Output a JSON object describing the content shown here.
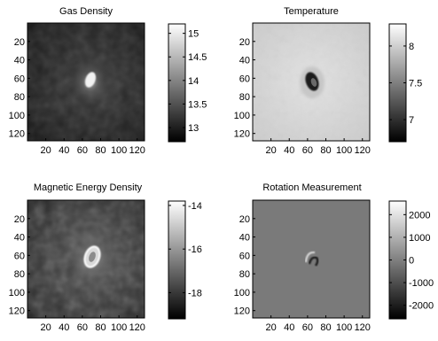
{
  "chart_data": [
    {
      "type": "heatmap",
      "title": "Gas Density",
      "x_ticks": [
        20,
        40,
        60,
        80,
        100,
        120
      ],
      "y_ticks": [
        20,
        40,
        60,
        80,
        100,
        120
      ],
      "xlim": [
        0,
        128
      ],
      "ylim": [
        0,
        128
      ],
      "colormap": "gray",
      "colorbar": {
        "range": [
          12.7,
          15.2
        ],
        "ticks": [
          13,
          13.5,
          14,
          14.5,
          15
        ],
        "tick_labels": [
          "13",
          "13.5",
          "14",
          "14.5",
          "15"
        ]
      },
      "features": [
        {
          "kind": "bright-blob",
          "x": 66,
          "y": 62,
          "value": 15.0
        }
      ]
    },
    {
      "type": "heatmap",
      "title": "Temperature",
      "x_ticks": [
        20,
        40,
        60,
        80,
        100,
        120
      ],
      "y_ticks": [
        20,
        40,
        60,
        80,
        100,
        120
      ],
      "xlim": [
        0,
        128
      ],
      "ylim": [
        0,
        128
      ],
      "colormap": "gray",
      "colorbar": {
        "range": [
          6.7,
          8.3
        ],
        "ticks": [
          7,
          7.5,
          8
        ],
        "tick_labels": [
          "7",
          "7.5",
          "8"
        ]
      },
      "features": [
        {
          "kind": "dark-blob",
          "x": 66,
          "y": 60,
          "value": 6.8
        }
      ]
    },
    {
      "type": "heatmap",
      "title": "Magnetic Energy Density",
      "x_ticks": [
        20,
        40,
        60,
        80,
        100,
        120
      ],
      "y_ticks": [
        20,
        40,
        60,
        80,
        100,
        120
      ],
      "xlim": [
        0,
        128
      ],
      "ylim": [
        0,
        128
      ],
      "colormap": "gray",
      "colorbar": {
        "range": [
          -19.2,
          -13.8
        ],
        "ticks": [
          -18,
          -16,
          -14
        ],
        "tick_labels": [
          "-18",
          "-16",
          "-14"
        ]
      },
      "features": [
        {
          "kind": "bright-ring",
          "x": 66,
          "y": 62,
          "value": -14.2
        }
      ]
    },
    {
      "type": "heatmap",
      "title": "Rotation Measurement",
      "x_ticks": [
        20,
        40,
        60,
        80,
        100,
        120
      ],
      "y_ticks": [
        20,
        40,
        60,
        80,
        100,
        120
      ],
      "xlim": [
        0,
        128
      ],
      "ylim": [
        0,
        128
      ],
      "colormap": "gray",
      "colorbar": {
        "range": [
          -2600,
          2600
        ],
        "ticks": [
          -2000,
          -1000,
          0,
          1000,
          2000
        ],
        "tick_labels": [
          "-2000",
          "-1000",
          "0",
          "1000",
          "2000"
        ]
      },
      "features": [
        {
          "kind": "dipole",
          "x": 66,
          "y": 60,
          "value": 0
        }
      ]
    }
  ]
}
